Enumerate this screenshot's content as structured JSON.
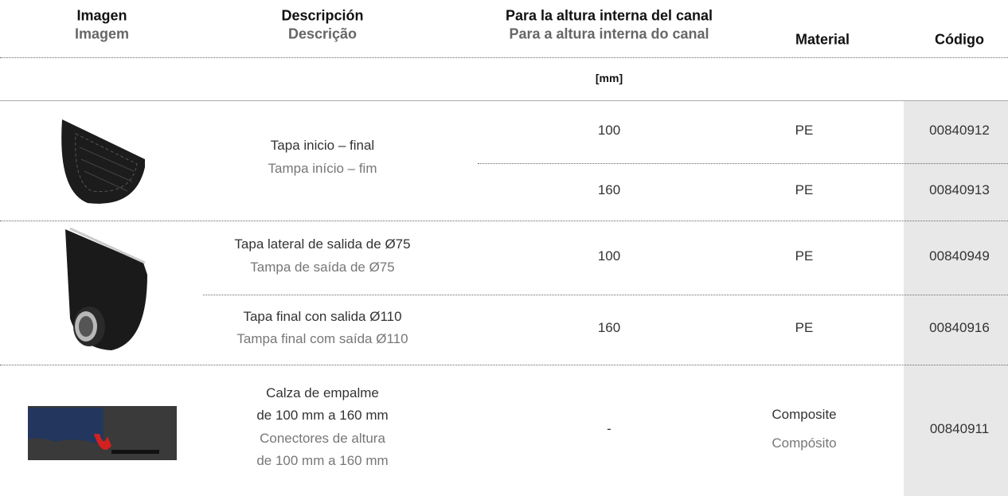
{
  "header": {
    "columns": [
      {
        "es": "Imagen",
        "pt": "Imagem"
      },
      {
        "es": "Descripción",
        "pt": "Descrição"
      },
      {
        "es": "Para la altura interna del canal",
        "pt": "Para a altura interna do canal"
      },
      {
        "es": "Material"
      },
      {
        "es": "Código"
      }
    ],
    "unit": "[mm]"
  },
  "groups": [
    {
      "description": {
        "es": [
          "Tapa inicio – final"
        ],
        "pt": [
          "Tampa início – fim"
        ]
      },
      "rows": [
        {
          "height": 100,
          "material": "PE",
          "code": "00840912"
        },
        {
          "height": 160,
          "material": "PE",
          "code": "00840913"
        }
      ]
    },
    {
      "rows": [
        {
          "description": {
            "es": [
              "Tapa lateral de salida de Ø75"
            ],
            "pt": [
              "Tampa de saída de Ø75"
            ]
          },
          "height": 100,
          "material": "PE",
          "code": "00840949"
        },
        {
          "description": {
            "es": [
              "Tapa final con salida Ø110"
            ],
            "pt": [
              "Tampa final com saída Ø110"
            ]
          },
          "height": 160,
          "material": "PE",
          "code": "00840916"
        }
      ]
    },
    {
      "description": {
        "es": [
          "Calza de empalme",
          "de 100 mm a 160 mm"
        ],
        "pt": [
          "Conectores de altura",
          "de 100 mm a 160 mm"
        ]
      },
      "rows": [
        {
          "height": "-",
          "material": {
            "es": "Composite",
            "pt": "Compósito"
          },
          "code": "00840911"
        }
      ]
    }
  ]
}
